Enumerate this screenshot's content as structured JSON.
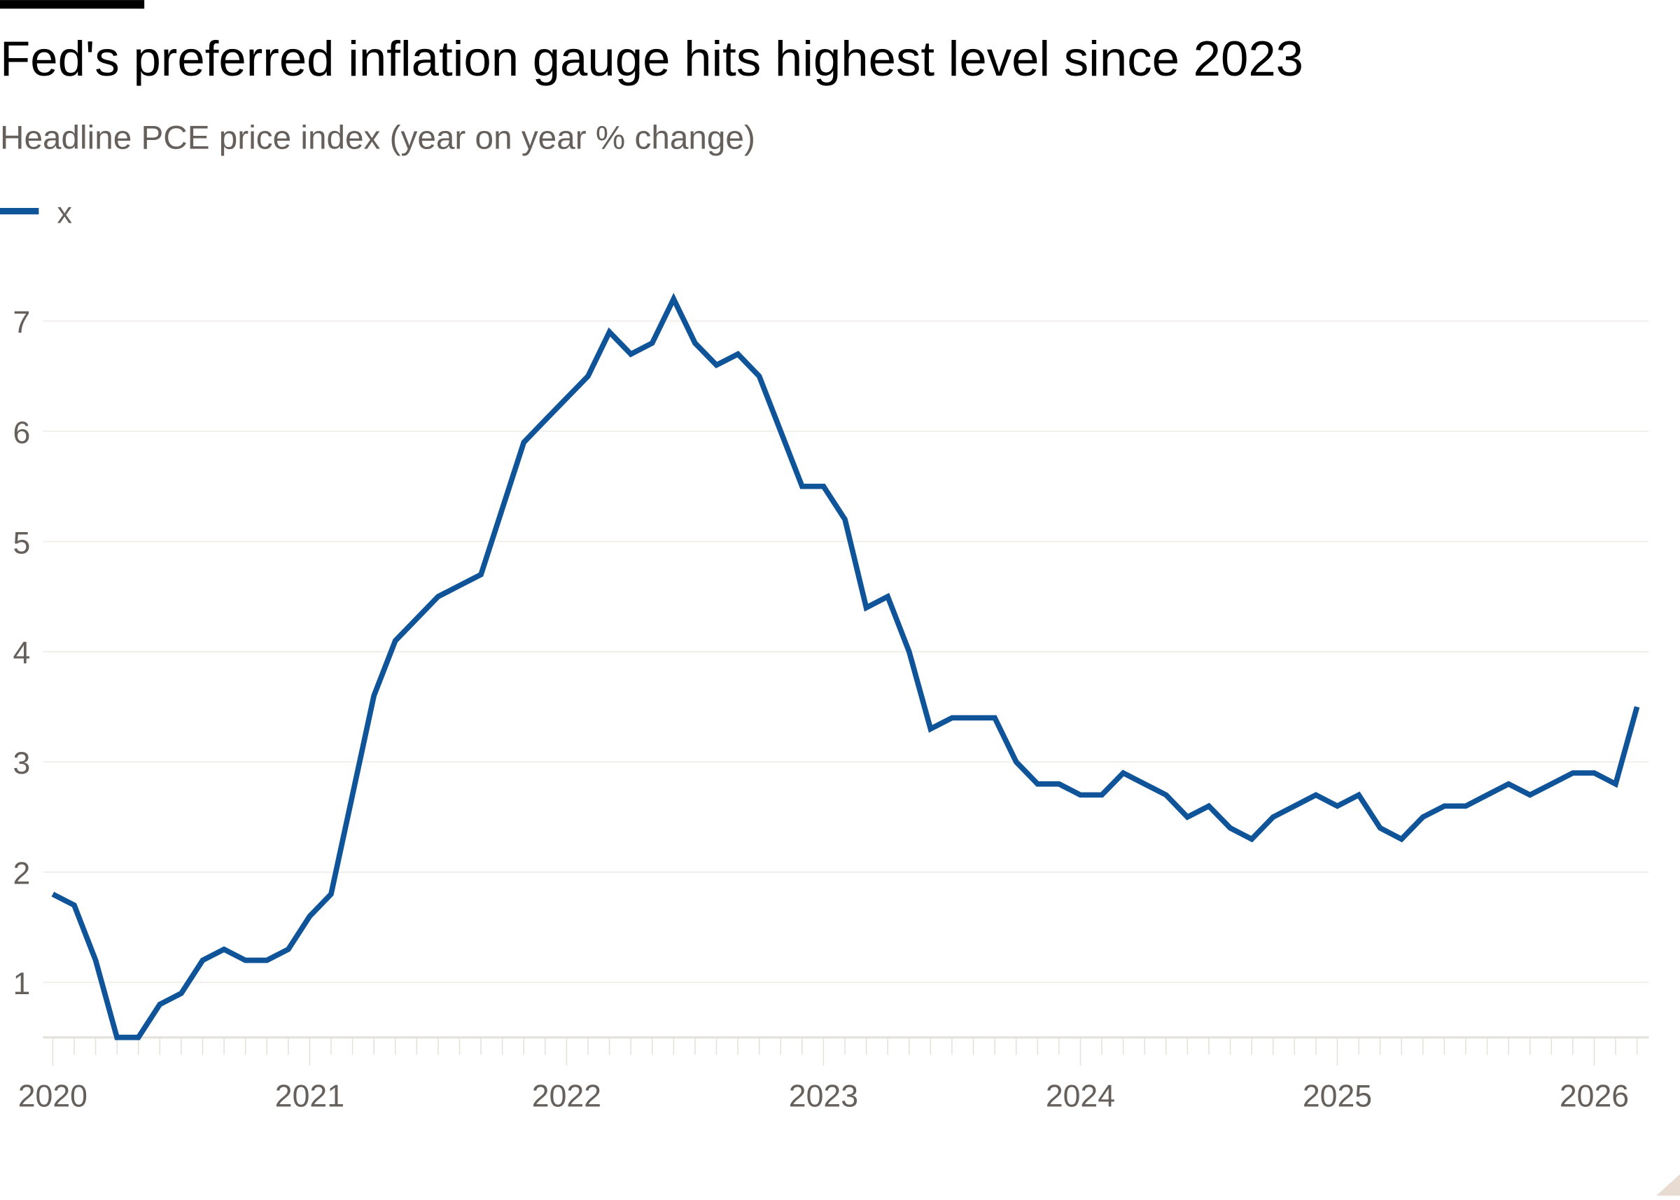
{
  "chart_data": {
    "type": "line",
    "title": "Fed's preferred inflation gauge hits highest level since 2023",
    "subtitle": "Headline PCE price index (year on year % change)",
    "legend": [
      {
        "name": "x",
        "color": "#0f5499"
      }
    ],
    "legend_placement": "top-left",
    "xlabel": "",
    "ylabel": "",
    "x_start": "2020-01",
    "x_frequency": "monthly",
    "x_ticks": [
      "2020",
      "2021",
      "2022",
      "2023",
      "2024",
      "2025",
      "2026"
    ],
    "y_ticks": [
      "1",
      "2",
      "3",
      "4",
      "5",
      "6",
      "7"
    ],
    "ylim": [
      0.5,
      7.5
    ],
    "grid": true,
    "series": [
      {
        "name": "x",
        "color": "#0f5499",
        "values": [
          1.8,
          1.7,
          1.2,
          0.5,
          0.5,
          0.8,
          0.9,
          1.2,
          1.3,
          1.2,
          1.2,
          1.3,
          1.6,
          1.8,
          2.7,
          3.6,
          4.1,
          4.3,
          4.5,
          4.6,
          4.7,
          5.3,
          5.9,
          6.1,
          6.3,
          6.5,
          6.9,
          6.7,
          6.8,
          7.2,
          6.8,
          6.6,
          6.7,
          6.5,
          6.0,
          5.5,
          5.5,
          5.2,
          4.4,
          4.5,
          4.0,
          3.3,
          3.4,
          3.4,
          3.4,
          3.0,
          2.8,
          2.8,
          2.7,
          2.7,
          2.9,
          2.8,
          2.7,
          2.5,
          2.6,
          2.4,
          2.3,
          2.5,
          2.6,
          2.7,
          2.6,
          2.7,
          2.4,
          2.3,
          2.5,
          2.6,
          2.6,
          2.7,
          2.8,
          2.7,
          2.8,
          2.9,
          2.9,
          2.8,
          3.5
        ]
      }
    ]
  }
}
